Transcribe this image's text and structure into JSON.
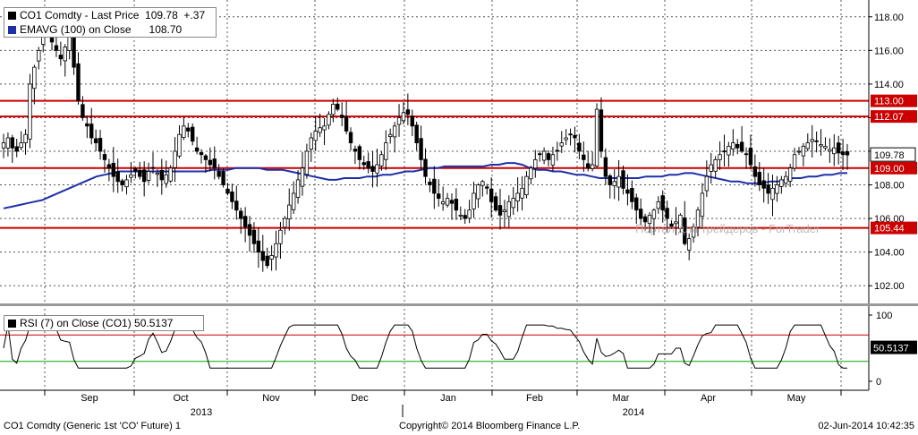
{
  "legend": {
    "price_label": "CO1 Comdty - Last Price",
    "price_value": "109.78",
    "price_change": "+.37",
    "ema_label": "EMAVG (100) on Close",
    "ema_value": "108.70",
    "rsi_label": "RSI (7) on Close (CO1)",
    "rsi_value": "50.5137"
  },
  "colors": {
    "price": "#000000",
    "ema": "#1f2fa8",
    "resistance": "#cc0000",
    "rsi_upper": "#cc0000",
    "rsi_lower": "#00aa00",
    "rsi_line": "#000000"
  },
  "chart_data": [
    {
      "type": "candlestick",
      "title": "CO1 Comdty - Last Price",
      "ylim": [
        101,
        119
      ],
      "yticks": [
        "102.00",
        "104.00",
        "106.00",
        "108.00",
        "110.00",
        "112.00",
        "114.00",
        "116.00",
        "118.00"
      ],
      "months": [
        "Sep",
        "Oct",
        "Nov",
        "Dec",
        "Jan",
        "Feb",
        "Mar",
        "Apr",
        "May"
      ],
      "years": [
        "2013",
        "2014"
      ],
      "price_close": [
        110.5,
        110.8,
        110.2,
        110,
        110.5,
        111,
        114,
        115,
        116,
        117.2,
        117.8,
        116.5,
        116,
        115.5,
        116.2,
        117,
        115,
        113,
        112,
        111.5,
        110.8,
        110.5,
        110,
        109.5,
        109,
        108.5,
        108.2,
        108,
        108.3,
        108.6,
        108.8,
        108.5,
        108.2,
        108.8,
        109,
        108.7,
        108.3,
        108.6,
        109,
        110,
        111,
        111.5,
        111.2,
        110.6,
        110,
        109.8,
        109.5,
        109.2,
        109,
        108.5,
        108,
        107.5,
        107,
        106.5,
        106,
        105.5,
        105,
        104.5,
        104,
        103.5,
        103.2,
        103.8,
        104.5,
        105.3,
        106,
        106.8,
        107.5,
        108.3,
        109,
        110,
        110.8,
        111.2,
        111.4,
        111.5,
        112.2,
        112.8,
        112.5,
        112,
        111.2,
        110.5,
        110,
        109.5,
        109.2,
        109,
        108.8,
        109.2,
        109.8,
        110.5,
        111,
        111.5,
        112,
        112.3,
        112.2,
        111.5,
        110.5,
        109.5,
        108.5,
        108,
        107.5,
        107.2,
        107,
        107.2,
        106.9,
        106.5,
        106.2,
        106,
        106.5,
        107.5,
        108,
        108.2,
        107.8,
        107,
        106.5,
        106.2,
        106.5,
        107,
        107.2,
        107.5,
        107.8,
        108.5,
        109,
        109.5,
        109.8,
        110,
        109.5,
        109.8,
        110,
        110.5,
        110.8,
        111,
        110.8,
        110,
        109.5,
        109,
        109.2,
        112.5,
        110,
        108.5,
        108,
        108.2,
        108.5,
        107.8,
        107.5,
        107,
        106.5,
        106,
        105.8,
        106.2,
        106.5,
        107,
        106.5,
        106,
        105.5,
        105.8,
        106.2,
        104.5,
        104.8,
        105.5,
        106.5,
        107.5,
        108.5,
        109.2,
        109.5,
        109.8,
        110,
        110.3,
        110.5,
        110.2,
        110,
        109.8,
        109.2,
        108.5,
        108,
        107.8,
        107.5,
        107.8,
        108,
        108.3,
        108.5,
        109,
        109.8,
        110,
        110.3,
        110.5,
        110.7,
        110.6,
        110.4,
        110.3,
        110.1,
        110.2,
        109.9,
        109.8,
        109.78
      ],
      "ema": [
        106.6,
        106.7,
        106.8,
        106.9,
        107,
        107.1,
        107.3,
        107.5,
        107.7,
        107.9,
        108.1,
        108.3,
        108.5,
        108.6,
        108.7,
        108.8,
        108.8,
        108.8,
        108.8,
        108.8,
        108.8,
        108.8,
        108.8,
        108.8,
        108.8,
        108.8,
        108.8,
        108.9,
        108.9,
        108.9,
        109,
        109,
        109,
        109,
        108.9,
        108.9,
        108.9,
        108.8,
        108.7,
        108.6,
        108.5,
        108.4,
        108.3,
        108.3,
        108.4,
        108.4,
        108.4,
        108.5,
        108.5,
        108.6,
        108.6,
        108.7,
        108.8,
        108.8,
        108.9,
        109,
        109,
        109.1,
        109.1,
        109.1,
        109.1,
        109.1,
        109.1,
        109.2,
        109.2,
        109.3,
        109.3,
        109.2,
        109,
        108.9,
        108.9,
        108.8,
        108.8,
        108.7,
        108.6,
        108.6,
        108.5,
        108.4,
        108.4,
        108.4,
        108.4,
        108.4,
        108.4,
        108.5,
        108.5,
        108.5,
        108.6,
        108.6,
        108.7,
        108.7,
        108.6,
        108.5,
        108.4,
        108.3,
        108.2,
        108.2,
        108.1,
        108.1,
        108.1,
        108.2,
        108.2,
        108.3,
        108.4,
        108.4,
        108.5,
        108.5,
        108.6,
        108.6,
        108.7,
        108.7
      ],
      "levels": [
        {
          "value": 113.0,
          "label": "113.00"
        },
        {
          "value": 112.07,
          "label": "112.07"
        },
        {
          "value": 109.0,
          "label": "109.00"
        },
        {
          "value": 105.44,
          "label": "105.44"
        }
      ],
      "last_price_label": "109.78"
    },
    {
      "type": "line",
      "title": "RSI (7) on Close (CO1)",
      "ylim": [
        0,
        100
      ],
      "yticks": [
        "0",
        "100"
      ],
      "upper_band": 70,
      "lower_band": 30,
      "last_value_label": "50.5137"
    }
  ],
  "watermark": "Портал для трейдеров - ForTrader",
  "footer": {
    "left": "CO1 Comdty (Generic 1st 'CO' Future) 1",
    "center": "Copyright© 2014 Bloomberg Finance L.P.",
    "right": "02-Jun-2014 10:42:35"
  }
}
